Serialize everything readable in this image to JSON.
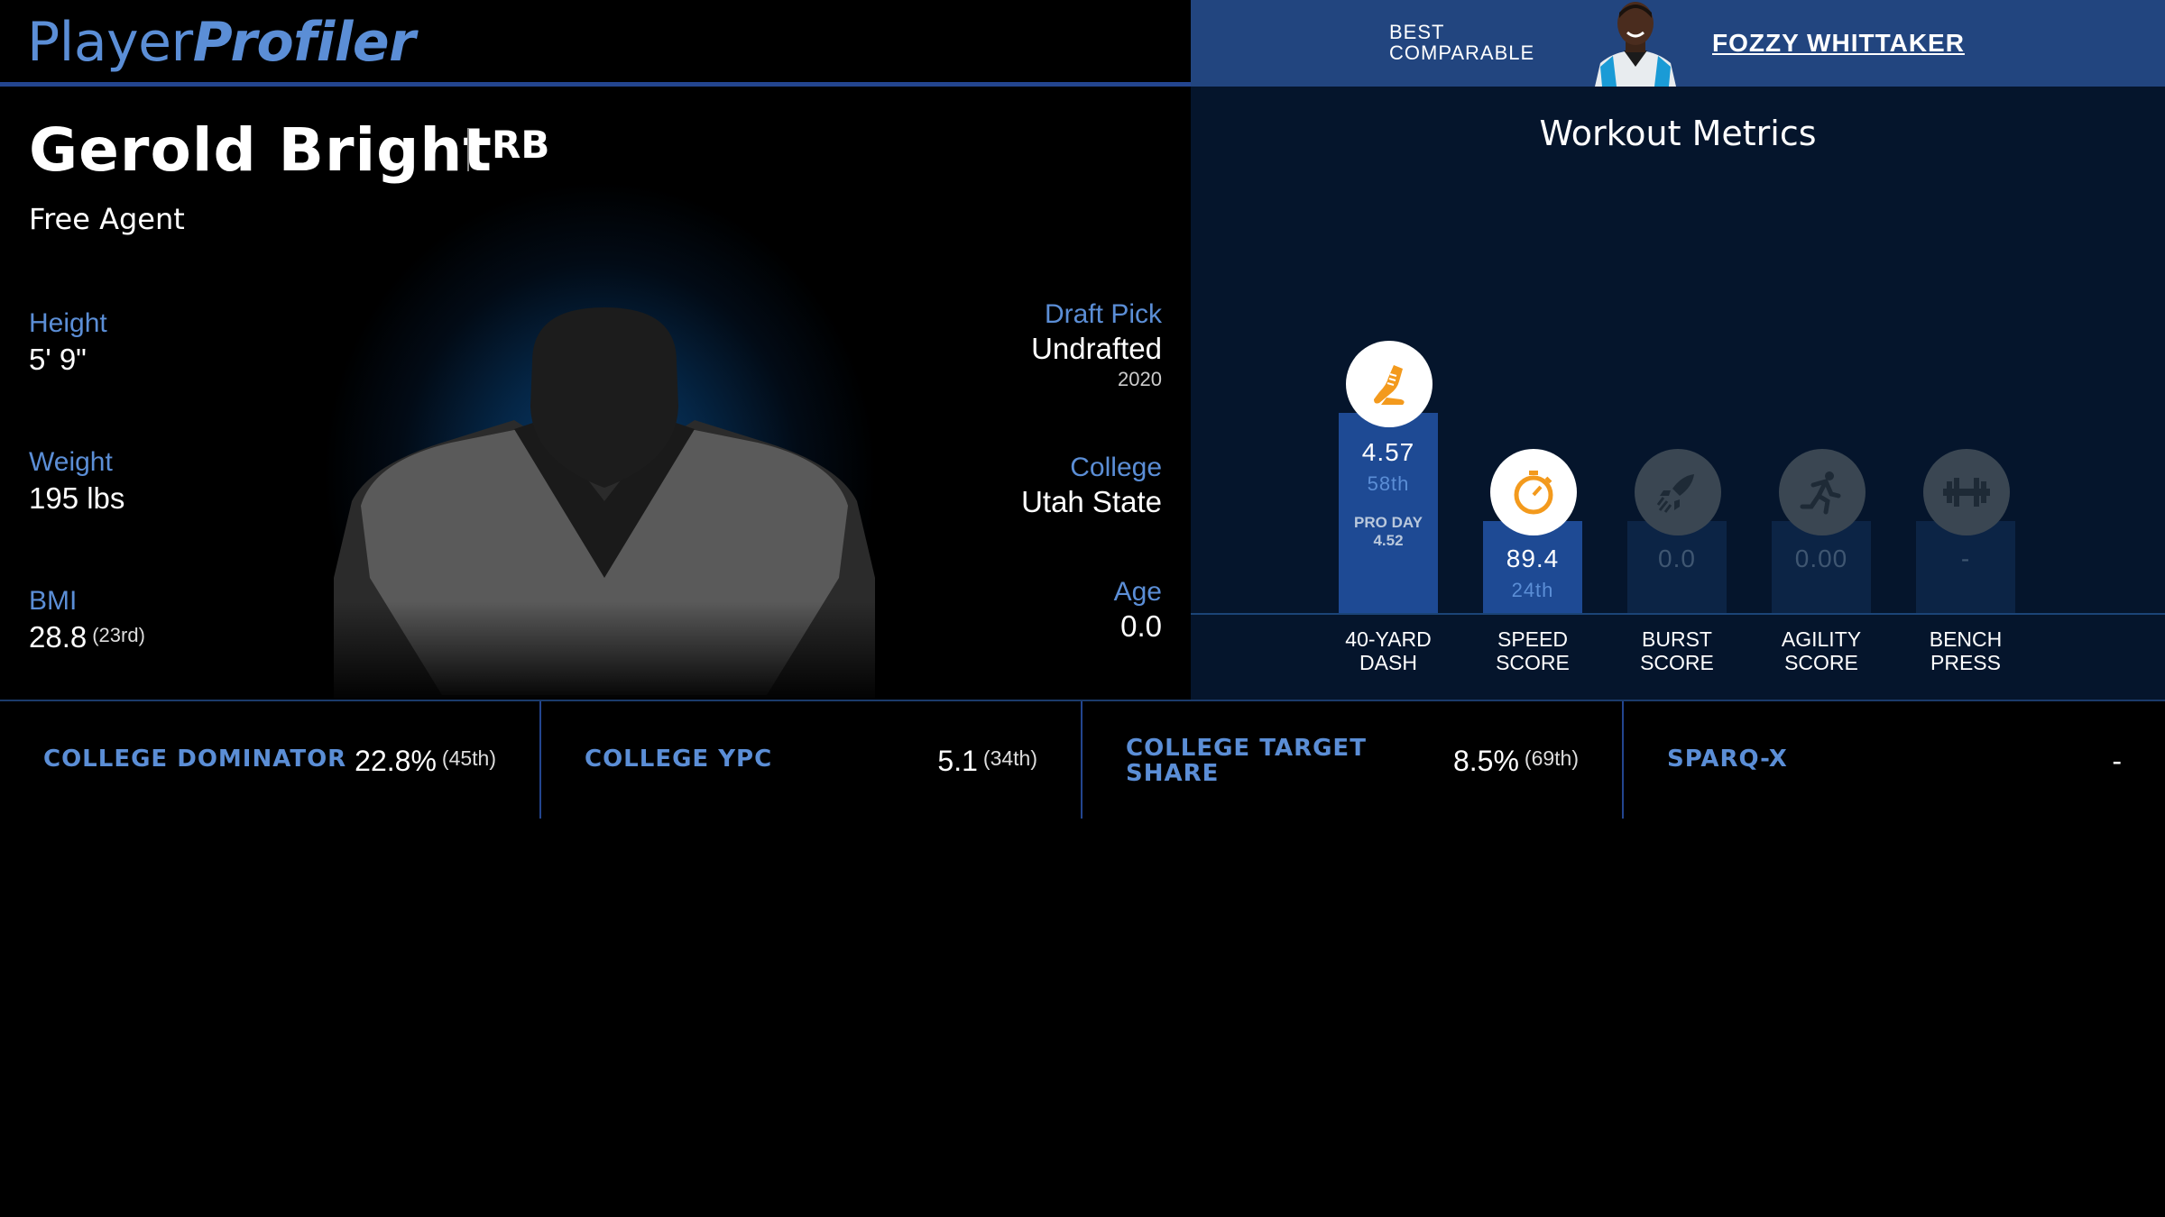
{
  "header": {
    "logo_part1": "Player",
    "logo_part2": "Profiler",
    "comparable_label_line1": "BEST",
    "comparable_label_line2": "COMPARABLE",
    "comparable_name": "FOZZY WHITTAKER"
  },
  "player": {
    "name": "Gerold Bright",
    "position": "RB",
    "team": "Free Agent",
    "height_label": "Height",
    "height_value": "5' 9\"",
    "weight_label": "Weight",
    "weight_value": "195 lbs",
    "bmi_label": "BMI",
    "bmi_value": "28.8",
    "bmi_rank": "(23rd)",
    "draft_label": "Draft Pick",
    "draft_value": "Undrafted",
    "draft_year": "2020",
    "college_label": "College",
    "college_value": "Utah State",
    "age_label": "Age",
    "age_value": "0.0"
  },
  "workout": {
    "title": "Workout Metrics",
    "metrics": [
      {
        "name": "40-YARD\nDASH",
        "value": "4.57",
        "percentile": "58th",
        "proday_label": "PRO DAY",
        "proday_value": "4.52",
        "icon": "running-shoe-icon",
        "percentile_level": 0.58
      },
      {
        "name": "SPEED\nSCORE",
        "value": "89.4",
        "percentile": "24th",
        "icon": "stopwatch-icon",
        "percentile_level": 0.24
      },
      {
        "name": "BURST\nSCORE",
        "value": "0.0",
        "percentile": "",
        "icon": "rocket-icon",
        "percentile_level": 0
      },
      {
        "name": "AGILITY\nSCORE",
        "value": "0.00",
        "percentile": "",
        "icon": "running-man-icon",
        "percentile_level": 0
      },
      {
        "name": "BENCH\nPRESS",
        "value": "-",
        "percentile": "",
        "icon": "dumbbell-icon",
        "percentile_level": 0
      }
    ]
  },
  "bottom_stats": [
    {
      "label": "COLLEGE DOMINATOR",
      "value": "22.8%",
      "rank": "(45th)"
    },
    {
      "label": "COLLEGE YPC",
      "value": "5.1",
      "rank": "(34th)"
    },
    {
      "label": "COLLEGE TARGET\nSHARE",
      "value": "8.5%",
      "rank": "(69th)"
    },
    {
      "label": "SPARQ-X",
      "value": "-",
      "rank": ""
    }
  ],
  "colors": {
    "accent_blue": "#5b8ed6",
    "bar_blue": "#1e4a94",
    "header_blue": "#22457f",
    "icon_orange": "#f39a1d"
  }
}
